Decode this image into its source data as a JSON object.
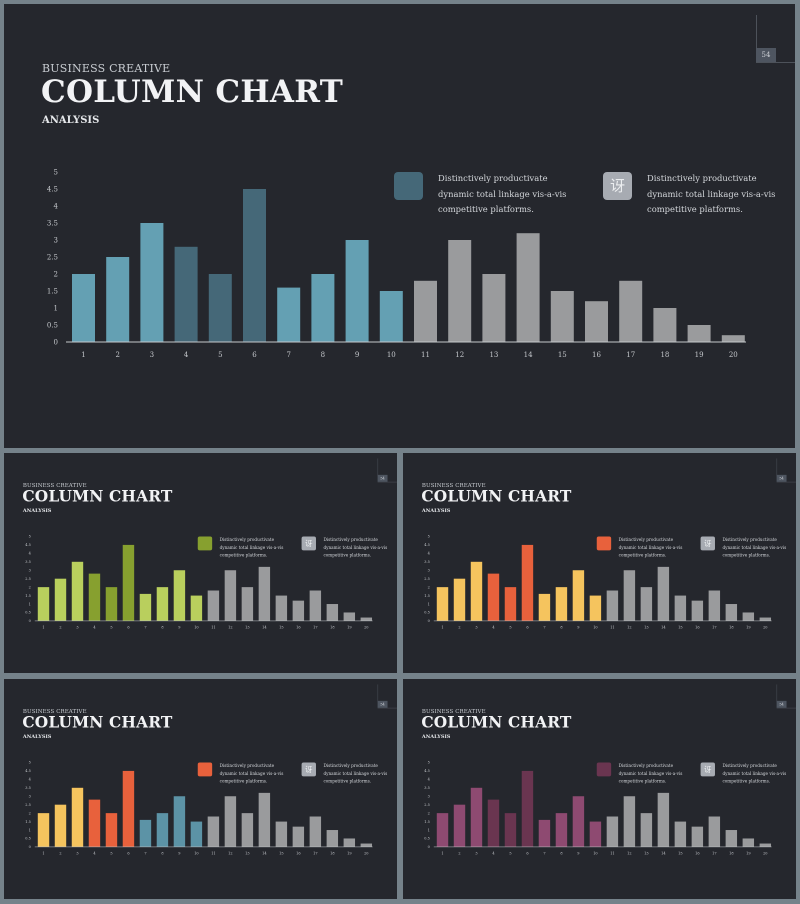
{
  "slide": {
    "supertitle": "BUSINESS CREATIVE",
    "title": "COLUMN CHART",
    "subtitle": "ANALYSIS",
    "page_number": "54",
    "legend_text_1": "Distinctively productivate dynamic total linkage vis-a-vis competitive platforms.",
    "legend_text_2": "Distinctively productivate dynamic total linkage vis-a-vis competitive platforms.",
    "legend_icon_glyph": "讶"
  },
  "colors": {
    "background": "#25272d",
    "frame": "#75828a",
    "grey_bar": "#9a9b9d",
    "axis": "#c5c8cc"
  },
  "themes": [
    {
      "light": "#64a0b3",
      "dark": "#456878",
      "swatch": "#456878"
    },
    {
      "light": "#b9cf5d",
      "dark": "#87a02f",
      "swatch": "#87a02f"
    },
    {
      "light": "#f5c45e",
      "dark": "#e8613c",
      "swatch": "#e8613c"
    },
    {
      "light_pattern": [
        "#f5c45e",
        "#f5c45e",
        "#f5c45e",
        "#e8613c",
        "#e8613c",
        "#e8613c",
        "#5c93a6",
        "#5c93a6",
        "#5c93a6",
        "#5c93a6"
      ],
      "swatch": "#e8613c"
    },
    {
      "light": "#8e4a71",
      "dark": "#6a3550",
      "swatch": "#6a3550"
    }
  ],
  "chart_data": {
    "type": "bar",
    "categories": [
      "1",
      "2",
      "3",
      "4",
      "5",
      "6",
      "7",
      "8",
      "9",
      "10",
      "11",
      "12",
      "13",
      "14",
      "15",
      "16",
      "17",
      "18",
      "19",
      "20"
    ],
    "values": [
      2,
      2.5,
      3.5,
      2.8,
      2,
      4.5,
      1.6,
      2,
      3,
      1.5,
      1.8,
      3,
      2,
      3.2,
      1.5,
      1.2,
      1.8,
      1,
      0.5,
      0.2
    ],
    "y_ticks": [
      "0",
      "0.5",
      "1",
      "1.5",
      "2",
      "2.5",
      "3",
      "3.5",
      "4",
      "4.5",
      "5"
    ],
    "ylim": [
      0,
      5
    ],
    "grid": false,
    "highlighted_categories": [
      "1",
      "2",
      "3",
      "4",
      "5",
      "6",
      "7",
      "8",
      "9",
      "10"
    ]
  }
}
